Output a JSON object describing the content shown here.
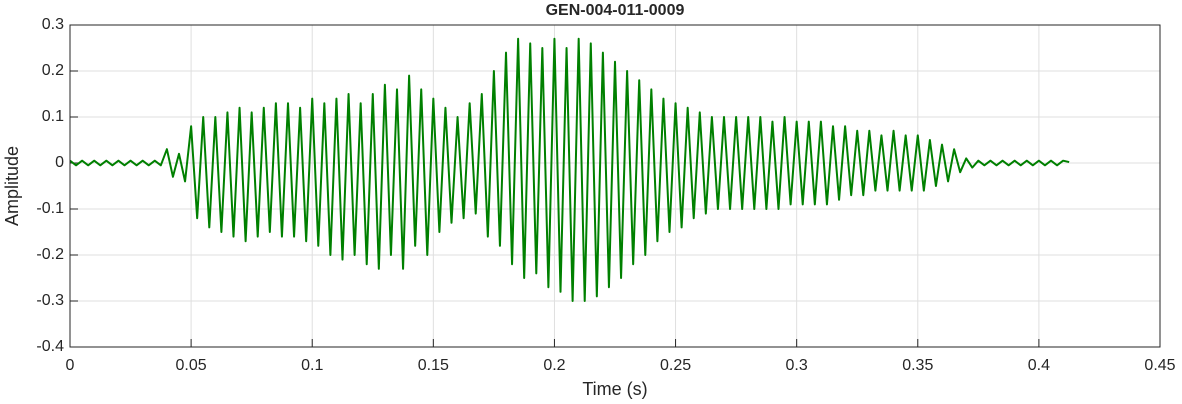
{
  "chart_data": {
    "type": "line",
    "title": "GEN-004-011-0009",
    "xlabel": "Time (s)",
    "ylabel": "Amplitude",
    "color": "#008000",
    "grid": true,
    "xlim": [
      0,
      0.45
    ],
    "ylim": [
      -0.4,
      0.3
    ],
    "xticks": [
      0,
      0.05,
      0.1,
      0.15,
      0.2,
      0.25,
      0.3,
      0.35,
      0.4,
      0.45
    ],
    "yticks": [
      -0.4,
      -0.3,
      -0.2,
      -0.1,
      0,
      0.1,
      0.2,
      0.3
    ],
    "x": [
      0,
      0.0025,
      0.005,
      0.0075,
      0.01,
      0.0125,
      0.015,
      0.0175,
      0.02,
      0.0225,
      0.025,
      0.0275,
      0.03,
      0.0325,
      0.035,
      0.0375,
      0.04,
      0.0425,
      0.045,
      0.0475,
      0.05,
      0.0525,
      0.055,
      0.0575,
      0.06,
      0.0625,
      0.065,
      0.0675,
      0.07,
      0.0725,
      0.075,
      0.0775,
      0.08,
      0.0825,
      0.085,
      0.0875,
      0.09,
      0.0925,
      0.095,
      0.0975,
      0.1,
      0.1025,
      0.105,
      0.1075,
      0.11,
      0.1125,
      0.115,
      0.1175,
      0.12,
      0.1225,
      0.125,
      0.1275,
      0.13,
      0.1325,
      0.135,
      0.1375,
      0.14,
      0.1425,
      0.145,
      0.1475,
      0.15,
      0.1525,
      0.155,
      0.1575,
      0.16,
      0.1625,
      0.165,
      0.1675,
      0.17,
      0.1725,
      0.175,
      0.1775,
      0.18,
      0.1825,
      0.185,
      0.1875,
      0.19,
      0.1925,
      0.195,
      0.1975,
      0.2,
      0.2025,
      0.205,
      0.2075,
      0.21,
      0.2125,
      0.215,
      0.2175,
      0.22,
      0.2225,
      0.225,
      0.2275,
      0.23,
      0.2325,
      0.235,
      0.2375,
      0.24,
      0.2425,
      0.245,
      0.2475,
      0.25,
      0.2525,
      0.255,
      0.2575,
      0.26,
      0.2625,
      0.265,
      0.2675,
      0.27,
      0.2725,
      0.275,
      0.2775,
      0.28,
      0.2825,
      0.285,
      0.2875,
      0.29,
      0.2925,
      0.295,
      0.2975,
      0.3,
      0.3025,
      0.305,
      0.3075,
      0.31,
      0.3125,
      0.315,
      0.3175,
      0.32,
      0.3225,
      0.325,
      0.3275,
      0.33,
      0.3325,
      0.335,
      0.3375,
      0.34,
      0.3425,
      0.345,
      0.3475,
      0.35,
      0.3525,
      0.355,
      0.3575,
      0.36,
      0.3625,
      0.365,
      0.3675,
      0.37,
      0.3725,
      0.375,
      0.3775,
      0.38,
      0.3825,
      0.385,
      0.3875,
      0.39,
      0.3925,
      0.395,
      0.3975,
      0.4,
      0.4025,
      0.405,
      0.4075,
      0.41,
      0.4125
    ],
    "values": [
      0.005,
      -0.005,
      0.005,
      -0.005,
      0.005,
      -0.005,
      0.005,
      -0.005,
      0.005,
      -0.005,
      0.005,
      -0.005,
      0.005,
      -0.005,
      0.005,
      -0.005,
      0.03,
      -0.03,
      0.02,
      -0.04,
      0.08,
      -0.12,
      0.1,
      -0.14,
      0.1,
      -0.15,
      0.11,
      -0.16,
      0.12,
      -0.17,
      0.11,
      -0.16,
      0.12,
      -0.15,
      0.13,
      -0.16,
      0.13,
      -0.16,
      0.12,
      -0.17,
      0.14,
      -0.18,
      0.13,
      -0.2,
      0.14,
      -0.21,
      0.15,
      -0.2,
      0.13,
      -0.22,
      0.15,
      -0.23,
      0.17,
      -0.2,
      0.16,
      -0.23,
      0.19,
      -0.18,
      0.16,
      -0.2,
      0.14,
      -0.15,
      0.12,
      -0.13,
      0.1,
      -0.12,
      0.13,
      -0.11,
      0.15,
      -0.16,
      0.2,
      -0.18,
      0.24,
      -0.22,
      0.27,
      -0.25,
      0.26,
      -0.24,
      0.25,
      -0.27,
      0.27,
      -0.28,
      0.25,
      -0.3,
      0.27,
      -0.3,
      0.26,
      -0.29,
      0.24,
      -0.27,
      0.22,
      -0.25,
      0.2,
      -0.22,
      0.18,
      -0.2,
      0.16,
      -0.17,
      0.14,
      -0.15,
      0.13,
      -0.14,
      0.12,
      -0.12,
      0.11,
      -0.11,
      0.1,
      -0.1,
      0.1,
      -0.1,
      0.1,
      -0.1,
      0.1,
      -0.1,
      0.1,
      -0.1,
      0.09,
      -0.1,
      0.1,
      -0.09,
      0.09,
      -0.09,
      0.09,
      -0.09,
      0.09,
      -0.09,
      0.08,
      -0.08,
      0.08,
      -0.07,
      0.07,
      -0.07,
      0.07,
      -0.06,
      0.06,
      -0.06,
      0.07,
      -0.06,
      0.06,
      -0.06,
      0.06,
      -0.06,
      0.05,
      -0.05,
      0.04,
      -0.04,
      0.03,
      -0.02,
      0.01,
      -0.01,
      0.005,
      -0.005,
      0.005,
      -0.005,
      0.005,
      -0.005,
      0.005,
      -0.005,
      0.005,
      -0.005,
      0.005,
      -0.005,
      0.005,
      -0.005,
      0.005,
      0.002
    ]
  }
}
